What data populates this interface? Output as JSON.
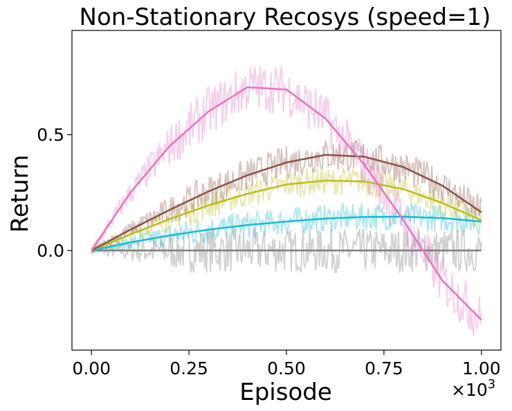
{
  "chart_data": {
    "type": "line",
    "title": "Non-Stationary Recosys (speed=1)",
    "xlabel": "Episode",
    "ylabel": "Return",
    "x_scale_label": "×10",
    "x_scale_exponent": "3",
    "xlim": [
      -0.05,
      1.05
    ],
    "ylim": [
      -0.43,
      0.95
    ],
    "x_ticks": [
      0.0,
      0.25,
      0.5,
      0.75,
      1.0
    ],
    "x_tick_labels": [
      "0.00",
      "0.25",
      "0.50",
      "0.75",
      "1.00"
    ],
    "y_ticks": [
      0.0,
      0.5
    ],
    "y_tick_labels": [
      "0.0",
      "0.5"
    ],
    "grid": false,
    "legend": "none",
    "x": [
      0.0,
      0.1,
      0.2,
      0.3,
      0.4,
      0.5,
      0.6,
      0.7,
      0.8,
      0.9,
      1.0
    ],
    "series": [
      {
        "color": "#7f7f7f",
        "values": [
          0.0,
          0.0,
          0.0,
          0.0,
          0.0,
          0.0,
          0.0,
          0.0,
          0.0,
          0.0,
          0.0
        ],
        "noise": 0.08
      },
      {
        "color": "#17becf",
        "values": [
          0.0,
          0.035,
          0.065,
          0.09,
          0.11,
          0.125,
          0.138,
          0.145,
          0.146,
          0.14,
          0.125
        ],
        "noise": 0.05
      },
      {
        "color": "#bcbd22",
        "values": [
          0.0,
          0.07,
          0.135,
          0.195,
          0.245,
          0.285,
          0.302,
          0.298,
          0.265,
          0.205,
          0.13
        ],
        "noise": 0.05
      },
      {
        "color": "#8c564b",
        "values": [
          0.0,
          0.09,
          0.175,
          0.255,
          0.325,
          0.38,
          0.413,
          0.405,
          0.36,
          0.28,
          0.165
        ],
        "noise": 0.06
      },
      {
        "color": "#e377c2",
        "values": [
          0.0,
          0.25,
          0.45,
          0.6,
          0.705,
          0.695,
          0.57,
          0.37,
          0.13,
          -0.13,
          -0.3
        ],
        "noise": 0.09
      }
    ]
  }
}
